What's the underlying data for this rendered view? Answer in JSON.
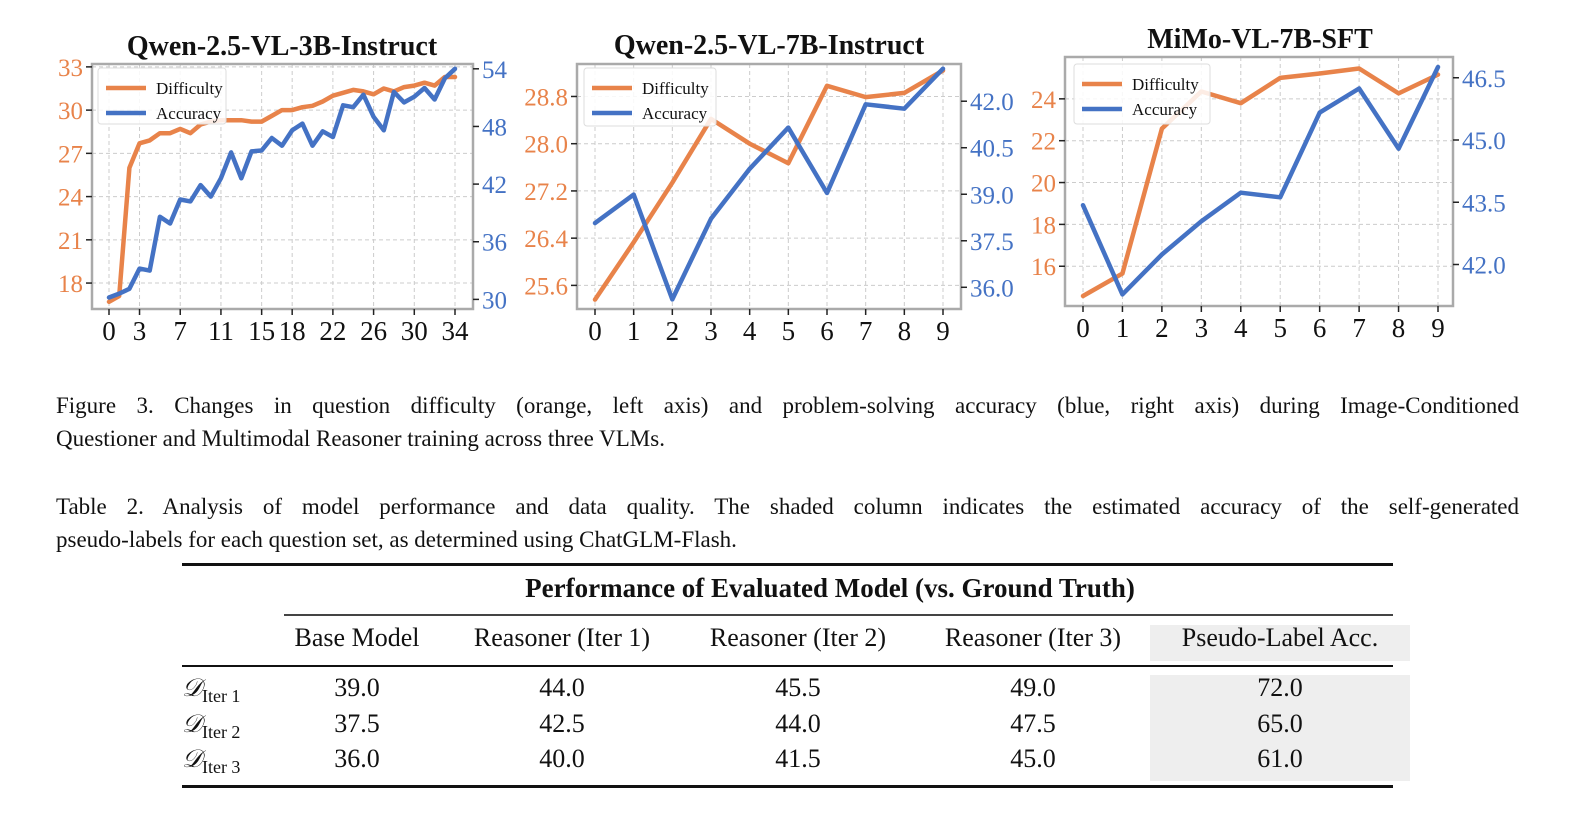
{
  "colors": {
    "difficulty": "#E8834A",
    "accuracy": "#4472C4",
    "left_axis_text": "#E8834A",
    "right_axis_text": "#4472C4",
    "frame": "#aaaaaa",
    "grid": "#cccccc",
    "shade": "#eeeeee"
  },
  "chart_data": [
    {
      "type": "line",
      "title": "Qwen-2.5-VL-3B-Instruct",
      "x": [
        0,
        1,
        2,
        3,
        4,
        5,
        6,
        7,
        8,
        9,
        10,
        11,
        12,
        13,
        14,
        15,
        16,
        17,
        18,
        19,
        20,
        21,
        22,
        23,
        24,
        25,
        26,
        27,
        28,
        29,
        30,
        31,
        32,
        33,
        34
      ],
      "x_ticks": [
        0,
        3,
        7,
        11,
        15,
        18,
        22,
        26,
        30,
        34
      ],
      "left_axis": {
        "label": "Difficulty",
        "ticks": [
          18,
          21,
          24,
          27,
          30,
          33
        ],
        "ylim": [
          16.2,
          33.2
        ]
      },
      "right_axis": {
        "label": "Accuracy",
        "ticks": [
          30,
          36,
          42,
          48,
          54
        ],
        "ylim": [
          29.0,
          54.5
        ]
      },
      "legend": {
        "position": "top-left",
        "entries": [
          "Difficulty",
          "Accuracy"
        ]
      },
      "grid": true,
      "series": [
        {
          "name": "Difficulty",
          "axis": "left",
          "values": [
            16.7,
            17.1,
            26.0,
            27.7,
            27.9,
            28.4,
            28.4,
            28.7,
            28.4,
            29.0,
            29.2,
            29.3,
            29.3,
            29.3,
            29.2,
            29.2,
            29.6,
            30.0,
            30.0,
            30.2,
            30.3,
            30.6,
            31.0,
            31.2,
            31.4,
            31.3,
            31.1,
            31.5,
            31.3,
            31.6,
            31.7,
            31.9,
            31.7,
            32.3,
            32.3
          ]
        },
        {
          "name": "Accuracy",
          "axis": "right",
          "values": [
            30.2,
            30.6,
            31.1,
            33.2,
            33.0,
            38.6,
            37.9,
            40.4,
            40.2,
            41.9,
            40.7,
            42.6,
            45.3,
            42.6,
            45.4,
            45.5,
            46.8,
            46.0,
            47.6,
            48.3,
            46.0,
            47.5,
            46.9,
            50.2,
            50.0,
            51.3,
            49.0,
            47.6,
            51.6,
            50.5,
            51.1,
            52.0,
            50.8,
            53.0,
            54.0
          ]
        }
      ]
    },
    {
      "type": "line",
      "title": "Qwen-2.5-VL-7B-Instruct",
      "x": [
        0,
        1,
        2,
        3,
        4,
        5,
        6,
        7,
        8,
        9
      ],
      "x_ticks": [
        0,
        1,
        2,
        3,
        4,
        5,
        6,
        7,
        8,
        9
      ],
      "left_axis": {
        "label": "Difficulty",
        "ticks": [
          "25.6",
          "26.4",
          "27.2",
          "28.0",
          "28.8"
        ],
        "ylim": [
          25.2,
          29.35
        ]
      },
      "right_axis": {
        "label": "Accuracy",
        "ticks": [
          "36.0",
          "37.5",
          "39.0",
          "40.5",
          "42.0"
        ],
        "ylim": [
          35.3,
          43.2
        ]
      },
      "legend": {
        "position": "top-left",
        "entries": [
          "Difficulty",
          "Accuracy"
        ]
      },
      "grid": true,
      "series": [
        {
          "name": "Difficulty",
          "axis": "left",
          "values": [
            25.36,
            26.33,
            27.34,
            28.42,
            28.0,
            27.67,
            28.98,
            28.79,
            28.86,
            29.24
          ]
        },
        {
          "name": "Accuracy",
          "axis": "right",
          "values": [
            38.07,
            38.99,
            35.61,
            38.21,
            39.82,
            41.15,
            39.04,
            41.9,
            41.76,
            43.05
          ]
        }
      ]
    },
    {
      "type": "line",
      "title": "MiMo-VL-7B-SFT",
      "x": [
        0,
        1,
        2,
        3,
        4,
        5,
        6,
        7,
        8,
        9
      ],
      "x_ticks": [
        0,
        1,
        2,
        3,
        4,
        5,
        6,
        7,
        8,
        9
      ],
      "left_axis": {
        "label": "Difficulty",
        "ticks": [
          16,
          18,
          20,
          22,
          24
        ],
        "ylim": [
          14.1,
          26.0
        ]
      },
      "right_axis": {
        "label": "Accuracy",
        "ticks": [
          "42.0",
          "43.5",
          "45.0",
          "46.5"
        ],
        "ylim": [
          41.0,
          47.0
        ]
      },
      "legend": {
        "position": "top-left",
        "entries": [
          "Difficulty",
          "Accuracy"
        ]
      },
      "grid": true,
      "series": [
        {
          "name": "Difficulty",
          "axis": "left",
          "values": [
            14.58,
            15.65,
            22.58,
            24.35,
            23.79,
            25.0,
            25.21,
            25.45,
            24.26,
            25.16
          ]
        },
        {
          "name": "Accuracy",
          "axis": "right",
          "values": [
            43.43,
            41.28,
            42.24,
            43.04,
            43.73,
            43.62,
            45.66,
            46.24,
            44.79,
            46.76
          ]
        }
      ]
    }
  ],
  "figure_caption": {
    "line1": "Figure 3.  Changes in question difficulty (orange, left axis) and problem-solving accuracy (blue, right axis) during Image-Conditioned",
    "line2": "Questioner and Multimodal Reasoner training across three VLMs."
  },
  "table_caption": {
    "line1": "Table 2.  Analysis of model performance and data quality.  The shaded column indicates the estimated accuracy of the self-generated",
    "line2": "pseudo-labels for each question set, as determined using ChatGLM-Flash."
  },
  "table": {
    "span_header": "Performance of Evaluated Model (vs. Ground Truth)",
    "columns": [
      "Base Model",
      "Reasoner (Iter 1)",
      "Reasoner (Iter 2)",
      "Reasoner (Iter 3)",
      "Pseudo-Label Acc."
    ],
    "rows": [
      {
        "label": "D",
        "sub": "Iter 1",
        "values": [
          "39.0",
          "44.0",
          "45.5",
          "49.0",
          "72.0"
        ]
      },
      {
        "label": "D",
        "sub": "Iter 2",
        "values": [
          "37.5",
          "42.5",
          "44.0",
          "47.5",
          "65.0"
        ]
      },
      {
        "label": "D",
        "sub": "Iter 3",
        "values": [
          "36.0",
          "40.0",
          "41.5",
          "45.0",
          "61.0"
        ]
      }
    ]
  }
}
